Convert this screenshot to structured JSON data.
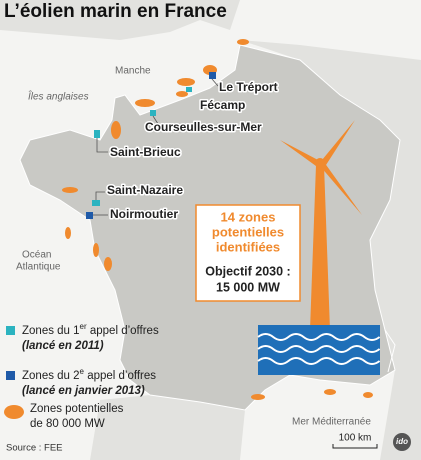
{
  "header": {
    "title": "L’éolien marin en France"
  },
  "seas": {
    "manche": "Manche",
    "iles": "Îles anglaises",
    "ocean": [
      "Océan",
      "Atlantique"
    ],
    "mediterranee": "Mer Méditerranée"
  },
  "places": [
    "Le Tréport",
    "Fécamp",
    "Courseulles-sur-Mer",
    "Saint-Brieuc",
    "Saint-Nazaire",
    "Noirmoutier"
  ],
  "box": {
    "headline": [
      "14 zones",
      "potentielles",
      "identifiées"
    ],
    "goal": [
      "Objectif 2030 :",
      "15 000 MW"
    ]
  },
  "legend": [
    {
      "parts": [
        "Zones du 1",
        "er",
        " appel d’offres"
      ],
      "note": "(lancé en 2011)"
    },
    {
      "parts": [
        "Zones du 2",
        "e",
        " appel d’offres"
      ],
      "note": "(lancé en janvier 2013)"
    },
    {
      "lines": [
        "Zones potentielles",
        "de 80 000 MW"
      ]
    }
  ],
  "footer": {
    "source": "Source : FEE",
    "scale": "100 km",
    "logo": "ido"
  }
}
